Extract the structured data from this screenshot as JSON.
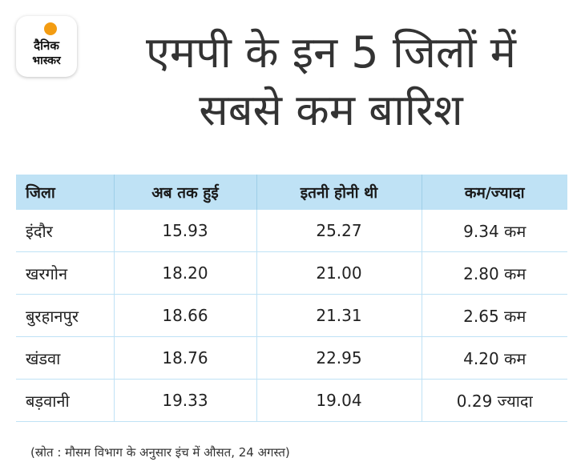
{
  "logo": {
    "line1": "दैनिक",
    "line2": "भास्कर",
    "accent": "#f39c12"
  },
  "headline": {
    "line1": "एमपी के इन 5 जिलों में",
    "line2": "सबसे कम बारिश"
  },
  "table": {
    "headers": [
      "जिला",
      "अब तक हुई",
      "इतनी होनी थी",
      "कम/ज्यादा"
    ],
    "rows": [
      {
        "district": "इंदौर",
        "received": "15.93",
        "expected": "25.27",
        "diff": "9.34 कम"
      },
      {
        "district": "खरगोन",
        "received": "18.20",
        "expected": "21.00",
        "diff": "2.80 कम"
      },
      {
        "district": "बुरहानपुर",
        "received": "18.66",
        "expected": "21.31",
        "diff": "2.65 कम"
      },
      {
        "district": "खंडवा",
        "received": "18.76",
        "expected": "22.95",
        "diff": "4.20 कम"
      },
      {
        "district": "बड़वानी",
        "received": "19.33",
        "expected": "19.04",
        "diff": "0.29 ज्यादा"
      }
    ],
    "header_bg": "#bfe2f5"
  },
  "source": "(स्रोत : मौसम विभाग के अनुसार इंच में औसत, 24 अगस्त)"
}
